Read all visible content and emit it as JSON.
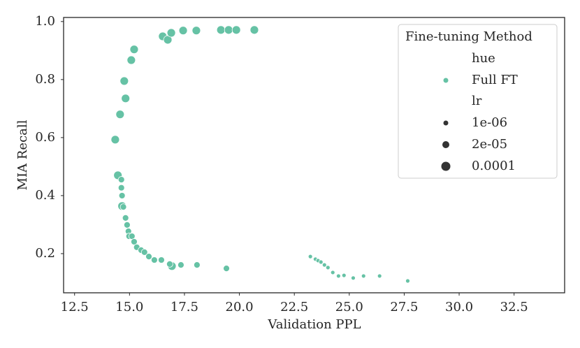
{
  "chart_data": {
    "type": "scatter",
    "xlabel": "Validation PPL",
    "ylabel": "MIA Recall",
    "xlim": [
      12.0,
      34.8
    ],
    "ylim": [
      0.065,
      1.014
    ],
    "xticks": [
      12.5,
      {
        "value": 15,
        "label": "15.0"
      },
      17.5,
      {
        "value": 20,
        "label": "20.0"
      },
      22.5,
      {
        "value": 25,
        "label": "25.0"
      },
      27.5,
      {
        "value": 30,
        "label": "30.0"
      },
      32.5
    ],
    "yticks": [
      0.2,
      0.4,
      0.6,
      0.8,
      {
        "value": 1,
        "label": "1.0"
      }
    ],
    "grid": false,
    "legend": {
      "title": "Fine-tuning Method",
      "hue_title": "hue",
      "size_title": "lr",
      "size_levels": [
        {
          "value": 1e-06,
          "label": "1e-06"
        },
        {
          "value": 2e-05,
          "label": "2e-05"
        },
        {
          "value": 0.0001,
          "label": "0.0001"
        }
      ],
      "position": "upper right"
    },
    "series": [
      {
        "name": "Full FT",
        "color": "#66c2a5",
        "x": [
          16.51,
          16.74,
          16.9,
          17.44,
          18.04,
          19.16,
          19.51,
          19.86,
          20.68,
          15.21,
          15.08,
          14.76,
          14.82,
          14.57,
          14.35,
          14.47,
          14.66,
          16.93,
          14.63,
          14.63,
          14.66,
          14.72,
          14.82,
          14.89,
          14.95,
          14.98,
          15.11,
          15.21,
          15.33,
          15.53,
          15.68,
          15.88,
          16.13,
          16.45,
          16.83,
          17.34,
          18.07,
          19.41,
          23.23,
          23.46,
          23.58,
          23.71,
          23.87,
          24.03,
          24.25,
          24.51,
          24.76,
          25.18,
          25.65,
          26.38,
          27.66
        ],
        "values": [
          0.949,
          0.937,
          0.961,
          0.969,
          0.969,
          0.971,
          0.971,
          0.971,
          0.971,
          0.904,
          0.867,
          0.795,
          0.735,
          0.68,
          0.593,
          0.47,
          0.364,
          0.157,
          0.455,
          0.427,
          0.4,
          0.361,
          0.323,
          0.299,
          0.277,
          0.26,
          0.26,
          0.241,
          0.222,
          0.212,
          0.205,
          0.19,
          0.178,
          0.178,
          0.164,
          0.161,
          0.161,
          0.149,
          0.19,
          0.181,
          0.176,
          0.171,
          0.161,
          0.152,
          0.135,
          0.123,
          0.125,
          0.116,
          0.123,
          0.123,
          0.106
        ],
        "lr": [
          0.0001,
          0.0001,
          0.0001,
          0.0001,
          0.0001,
          0.0001,
          0.0001,
          0.0001,
          0.0001,
          0.0001,
          0.0001,
          0.0001,
          0.0001,
          0.0001,
          0.0001,
          0.0001,
          0.0001,
          0.0001,
          2e-05,
          2e-05,
          2e-05,
          2e-05,
          2e-05,
          2e-05,
          2e-05,
          2e-05,
          2e-05,
          2e-05,
          2e-05,
          2e-05,
          2e-05,
          2e-05,
          2e-05,
          2e-05,
          2e-05,
          2e-05,
          2e-05,
          2e-05,
          1e-06,
          1e-06,
          1e-06,
          1e-06,
          1e-06,
          1e-06,
          1e-06,
          1e-06,
          1e-06,
          1e-06,
          1e-06,
          1e-06,
          1e-06
        ]
      }
    ]
  }
}
